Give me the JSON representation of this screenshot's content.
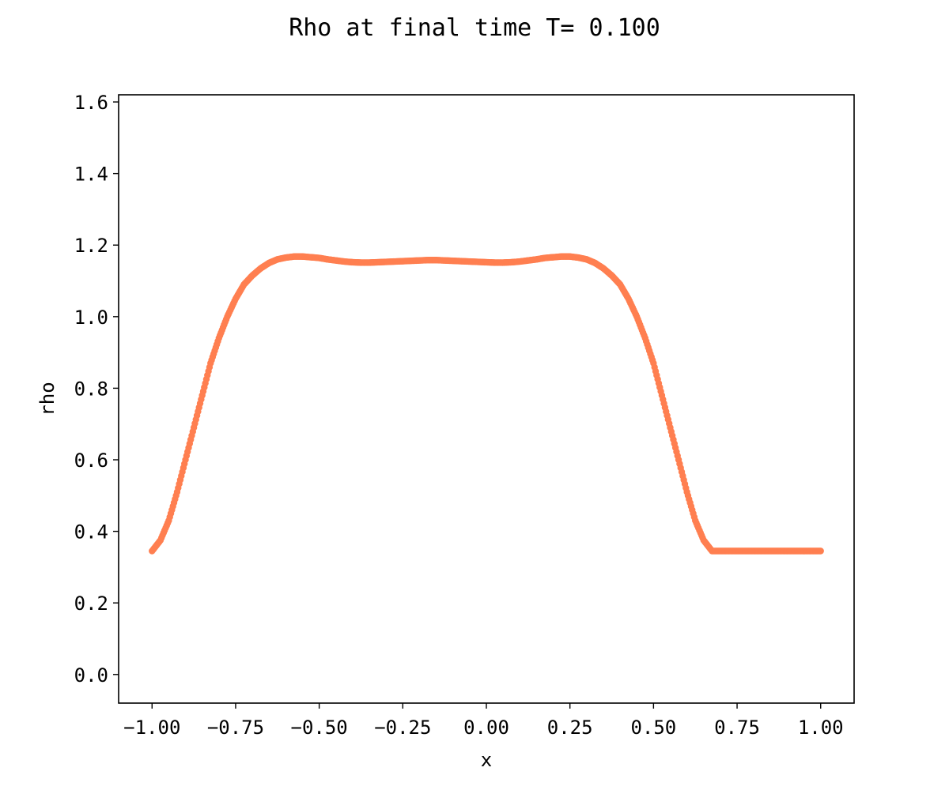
{
  "chart_data": {
    "type": "scatter",
    "title": "Rho at final time T= 0.100",
    "xlabel": "x",
    "ylabel": "rho",
    "xlim": [
      -1.1,
      1.1
    ],
    "ylim": [
      -0.08,
      1.62
    ],
    "xticks": [
      -1.0,
      -0.75,
      -0.5,
      -0.25,
      0.0,
      0.25,
      0.5,
      0.75,
      1.0
    ],
    "xtick_labels": [
      "−1.00",
      "−0.75",
      "−0.50",
      "−0.25",
      "0.00",
      "0.25",
      "0.50",
      "0.75",
      "1.00"
    ],
    "yticks": [
      0.0,
      0.2,
      0.4,
      0.6,
      0.8,
      1.0,
      1.2,
      1.4,
      1.6
    ],
    "ytick_labels": [
      "0.0",
      "0.2",
      "0.4",
      "0.6",
      "0.8",
      "1.0",
      "1.2",
      "1.4",
      "1.6"
    ],
    "grid": false,
    "marker_color": "#ff7f50",
    "series": [
      {
        "x": [
          -1.0,
          -0.975,
          -0.95,
          -0.925,
          -0.9,
          -0.875,
          -0.85,
          -0.825,
          -0.8,
          -0.775,
          -0.75,
          -0.725,
          -0.7,
          -0.675,
          -0.65,
          -0.625,
          -0.6,
          -0.575,
          -0.55,
          -0.525,
          -0.5,
          -0.475,
          -0.45,
          -0.425,
          -0.4,
          -0.375,
          -0.35,
          -0.325,
          -0.3,
          -0.275,
          -0.25,
          -0.225,
          -0.2,
          -0.175,
          -0.15,
          -0.125,
          -0.1,
          -0.075,
          -0.05,
          -0.025,
          0.0,
          0.025,
          0.05,
          0.075,
          0.1,
          0.125,
          0.15,
          0.175,
          0.2,
          0.225,
          0.25,
          0.275,
          0.3,
          0.325,
          0.35,
          0.375,
          0.4,
          0.425,
          0.45,
          0.475,
          0.5,
          0.525,
          0.55,
          0.575,
          0.6,
          0.625,
          0.65,
          0.675,
          0.7,
          0.725,
          0.75,
          0.775,
          0.8,
          0.825,
          0.85,
          0.875,
          0.9,
          0.925,
          0.95,
          0.975,
          1.0
        ],
        "y": [
          0.345,
          0.375,
          0.43,
          0.51,
          0.6,
          0.69,
          0.78,
          0.87,
          0.94,
          1.0,
          1.05,
          1.09,
          1.115,
          1.135,
          1.15,
          1.16,
          1.165,
          1.168,
          1.168,
          1.166,
          1.164,
          1.16,
          1.157,
          1.154,
          1.152,
          1.151,
          1.151,
          1.152,
          1.153,
          1.154,
          1.155,
          1.156,
          1.157,
          1.158,
          1.158,
          1.157,
          1.156,
          1.155,
          1.154,
          1.153,
          1.152,
          1.151,
          1.151,
          1.152,
          1.154,
          1.157,
          1.16,
          1.164,
          1.166,
          1.168,
          1.168,
          1.165,
          1.16,
          1.15,
          1.135,
          1.115,
          1.09,
          1.05,
          1.0,
          0.94,
          0.87,
          0.78,
          0.69,
          0.6,
          0.51,
          0.43,
          0.375,
          0.345,
          0.345,
          0.345,
          0.345,
          0.345,
          0.345,
          0.345,
          0.345,
          0.345,
          0.345,
          0.345,
          0.345,
          0.345,
          0.345
        ]
      }
    ]
  }
}
